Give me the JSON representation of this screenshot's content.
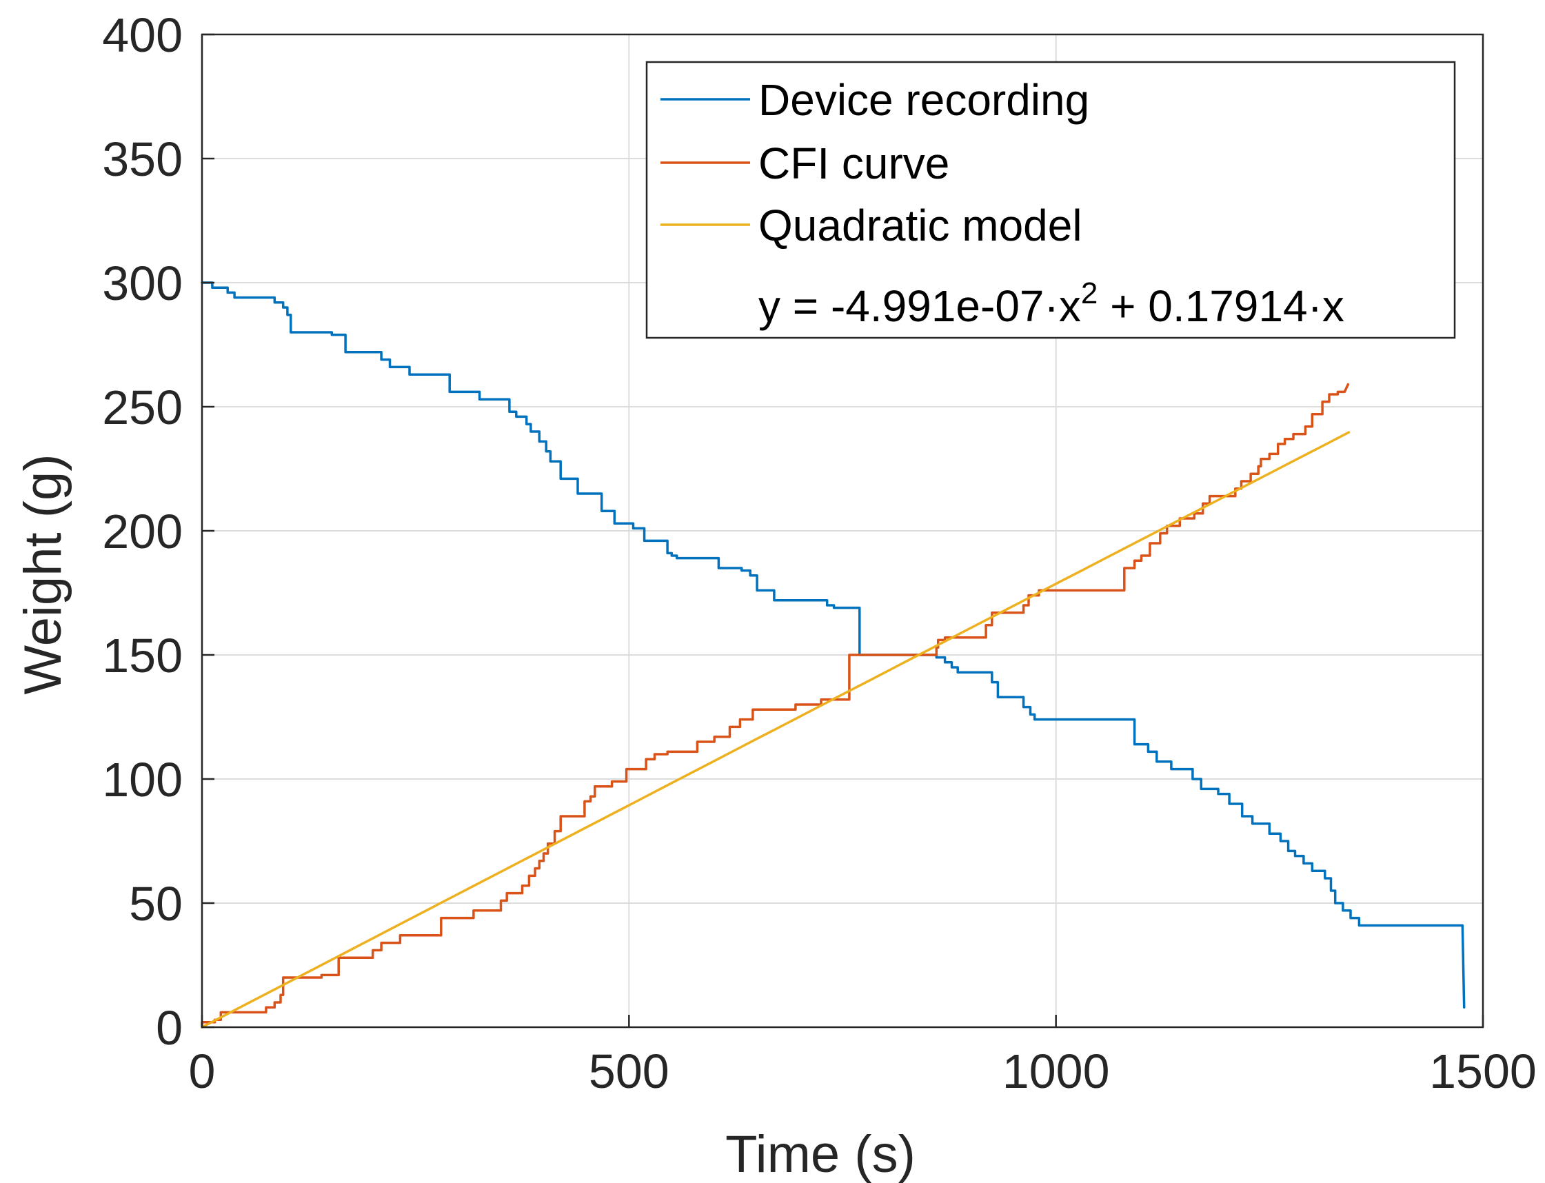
{
  "colors": {
    "device": "#0072BD",
    "cfi": "#D95319",
    "quadratic": "#EDB120",
    "axis": "#262626",
    "grid": "#dcdcdc"
  },
  "chart_data": {
    "type": "line",
    "title": "",
    "xlabel": "Time (s)",
    "ylabel": "Weight (g)",
    "xlim": [
      0,
      1500
    ],
    "ylim": [
      0,
      400
    ],
    "xticks": [
      0,
      500,
      1000,
      1500
    ],
    "yticks": [
      0,
      50,
      100,
      150,
      200,
      250,
      300,
      350,
      400
    ],
    "xtick_labels": [
      "0",
      "500",
      "1000",
      "1500"
    ],
    "ytick_labels": [
      "0",
      "50",
      "100",
      "150",
      "200",
      "250",
      "300",
      "350",
      "400"
    ],
    "grid": true,
    "legend_placement": "top-right",
    "equation": {
      "prefix": "y = -4.991e-07·x",
      "exponent": "2",
      "suffix": " + 0.17914·x"
    },
    "series": [
      {
        "name": "Device recording",
        "color": "#0072BD",
        "style": "step",
        "points": [
          [
            0,
            300
          ],
          [
            12,
            300
          ],
          [
            12,
            298
          ],
          [
            30,
            298
          ],
          [
            30,
            296
          ],
          [
            38,
            296
          ],
          [
            38,
            294
          ],
          [
            85,
            294
          ],
          [
            85,
            292
          ],
          [
            95,
            292
          ],
          [
            95,
            290
          ],
          [
            100,
            290
          ],
          [
            100,
            287
          ],
          [
            104,
            287
          ],
          [
            104,
            280
          ],
          [
            152,
            280
          ],
          [
            152,
            279
          ],
          [
            168,
            279
          ],
          [
            168,
            272
          ],
          [
            210,
            272
          ],
          [
            210,
            269
          ],
          [
            220,
            269
          ],
          [
            220,
            266
          ],
          [
            243,
            266
          ],
          [
            243,
            263
          ],
          [
            290,
            263
          ],
          [
            290,
            256
          ],
          [
            325,
            256
          ],
          [
            325,
            253
          ],
          [
            360,
            253
          ],
          [
            360,
            248
          ],
          [
            368,
            248
          ],
          [
            368,
            246
          ],
          [
            380,
            246
          ],
          [
            380,
            243
          ],
          [
            385,
            243
          ],
          [
            385,
            240
          ],
          [
            395,
            240
          ],
          [
            395,
            236
          ],
          [
            403,
            236
          ],
          [
            403,
            232
          ],
          [
            408,
            232
          ],
          [
            408,
            228
          ],
          [
            420,
            228
          ],
          [
            420,
            221
          ],
          [
            440,
            221
          ],
          [
            440,
            215
          ],
          [
            468,
            215
          ],
          [
            468,
            208
          ],
          [
            483,
            208
          ],
          [
            483,
            203
          ],
          [
            505,
            203
          ],
          [
            505,
            201
          ],
          [
            518,
            201
          ],
          [
            518,
            196
          ],
          [
            545,
            196
          ],
          [
            545,
            191
          ],
          [
            550,
            191
          ],
          [
            550,
            190
          ],
          [
            556,
            190
          ],
          [
            556,
            189
          ],
          [
            605,
            189
          ],
          [
            605,
            185
          ],
          [
            632,
            185
          ],
          [
            632,
            184
          ],
          [
            642,
            184
          ],
          [
            642,
            182
          ],
          [
            650,
            182
          ],
          [
            650,
            176
          ],
          [
            670,
            176
          ],
          [
            670,
            172
          ],
          [
            732,
            172
          ],
          [
            732,
            170
          ],
          [
            740,
            170
          ],
          [
            740,
            169
          ],
          [
            770,
            169
          ],
          [
            770,
            150
          ],
          [
            860,
            150
          ],
          [
            860,
            149
          ],
          [
            870,
            149
          ],
          [
            870,
            147
          ],
          [
            878,
            147
          ],
          [
            878,
            145
          ],
          [
            885,
            145
          ],
          [
            885,
            143
          ],
          [
            925,
            143
          ],
          [
            925,
            139
          ],
          [
            932,
            139
          ],
          [
            932,
            133
          ],
          [
            962,
            133
          ],
          [
            962,
            129
          ],
          [
            970,
            129
          ],
          [
            970,
            126
          ],
          [
            975,
            126
          ],
          [
            975,
            124
          ],
          [
            1092,
            124
          ],
          [
            1092,
            114
          ],
          [
            1108,
            114
          ],
          [
            1108,
            111
          ],
          [
            1118,
            111
          ],
          [
            1118,
            107
          ],
          [
            1135,
            107
          ],
          [
            1135,
            104
          ],
          [
            1160,
            104
          ],
          [
            1160,
            100
          ],
          [
            1170,
            100
          ],
          [
            1170,
            96
          ],
          [
            1190,
            96
          ],
          [
            1190,
            94
          ],
          [
            1203,
            94
          ],
          [
            1203,
            90
          ],
          [
            1218,
            90
          ],
          [
            1218,
            85
          ],
          [
            1230,
            85
          ],
          [
            1230,
            82
          ],
          [
            1250,
            82
          ],
          [
            1250,
            78
          ],
          [
            1263,
            78
          ],
          [
            1263,
            75
          ],
          [
            1272,
            75
          ],
          [
            1272,
            71
          ],
          [
            1280,
            71
          ],
          [
            1280,
            69
          ],
          [
            1290,
            69
          ],
          [
            1290,
            66
          ],
          [
            1300,
            66
          ],
          [
            1300,
            63
          ],
          [
            1315,
            63
          ],
          [
            1315,
            60
          ],
          [
            1322,
            60
          ],
          [
            1322,
            55
          ],
          [
            1327,
            55
          ],
          [
            1327,
            50
          ],
          [
            1336,
            50
          ],
          [
            1336,
            47
          ],
          [
            1345,
            47
          ],
          [
            1345,
            44
          ],
          [
            1355,
            44
          ],
          [
            1355,
            41
          ],
          [
            1476,
            41
          ],
          [
            1478,
            8
          ]
        ]
      },
      {
        "name": "CFI curve",
        "color": "#D95319",
        "style": "step",
        "points": [
          [
            0,
            0
          ],
          [
            0,
            2
          ],
          [
            15,
            2
          ],
          [
            15,
            3
          ],
          [
            22,
            3
          ],
          [
            22,
            6
          ],
          [
            75,
            6
          ],
          [
            75,
            8
          ],
          [
            85,
            8
          ],
          [
            85,
            10
          ],
          [
            92,
            10
          ],
          [
            92,
            13
          ],
          [
            95,
            13
          ],
          [
            95,
            20
          ],
          [
            140,
            20
          ],
          [
            140,
            21
          ],
          [
            160,
            21
          ],
          [
            160,
            28
          ],
          [
            200,
            28
          ],
          [
            200,
            31
          ],
          [
            210,
            31
          ],
          [
            210,
            34
          ],
          [
            232,
            34
          ],
          [
            232,
            37
          ],
          [
            280,
            37
          ],
          [
            280,
            44
          ],
          [
            318,
            44
          ],
          [
            318,
            47
          ],
          [
            350,
            47
          ],
          [
            350,
            51
          ],
          [
            357,
            51
          ],
          [
            357,
            54
          ],
          [
            375,
            54
          ],
          [
            375,
            57
          ],
          [
            383,
            57
          ],
          [
            383,
            61
          ],
          [
            390,
            61
          ],
          [
            390,
            64
          ],
          [
            395,
            64
          ],
          [
            395,
            67
          ],
          [
            400,
            67
          ],
          [
            400,
            70
          ],
          [
            405,
            70
          ],
          [
            405,
            74
          ],
          [
            413,
            74
          ],
          [
            413,
            79
          ],
          [
            420,
            79
          ],
          [
            420,
            85
          ],
          [
            448,
            85
          ],
          [
            448,
            91
          ],
          [
            455,
            91
          ],
          [
            455,
            93
          ],
          [
            460,
            93
          ],
          [
            460,
            97
          ],
          [
            480,
            97
          ],
          [
            480,
            99
          ],
          [
            497,
            99
          ],
          [
            497,
            104
          ],
          [
            520,
            104
          ],
          [
            520,
            108
          ],
          [
            530,
            108
          ],
          [
            530,
            110
          ],
          [
            545,
            110
          ],
          [
            545,
            111
          ],
          [
            580,
            111
          ],
          [
            580,
            115
          ],
          [
            600,
            115
          ],
          [
            600,
            117
          ],
          [
            618,
            117
          ],
          [
            618,
            121
          ],
          [
            630,
            121
          ],
          [
            630,
            124
          ],
          [
            645,
            124
          ],
          [
            645,
            128
          ],
          [
            695,
            128
          ],
          [
            695,
            130
          ],
          [
            725,
            130
          ],
          [
            725,
            132
          ],
          [
            758,
            132
          ],
          [
            758,
            150
          ],
          [
            860,
            150
          ],
          [
            860,
            153
          ],
          [
            862,
            153
          ],
          [
            862,
            156
          ],
          [
            870,
            156
          ],
          [
            870,
            157
          ],
          [
            918,
            157
          ],
          [
            918,
            162
          ],
          [
            925,
            162
          ],
          [
            925,
            167
          ],
          [
            962,
            167
          ],
          [
            962,
            170
          ],
          [
            968,
            170
          ],
          [
            968,
            174
          ],
          [
            980,
            174
          ],
          [
            980,
            176
          ],
          [
            1080,
            176
          ],
          [
            1080,
            185
          ],
          [
            1092,
            185
          ],
          [
            1092,
            188
          ],
          [
            1100,
            188
          ],
          [
            1100,
            190
          ],
          [
            1110,
            190
          ],
          [
            1110,
            195
          ],
          [
            1122,
            195
          ],
          [
            1122,
            199
          ],
          [
            1130,
            199
          ],
          [
            1130,
            202
          ],
          [
            1145,
            202
          ],
          [
            1145,
            205
          ],
          [
            1162,
            205
          ],
          [
            1162,
            207
          ],
          [
            1172,
            207
          ],
          [
            1172,
            211
          ],
          [
            1180,
            211
          ],
          [
            1180,
            214
          ],
          [
            1210,
            214
          ],
          [
            1210,
            217
          ],
          [
            1217,
            217
          ],
          [
            1217,
            220
          ],
          [
            1228,
            220
          ],
          [
            1228,
            223
          ],
          [
            1237,
            223
          ],
          [
            1237,
            226
          ],
          [
            1240,
            226
          ],
          [
            1240,
            229
          ],
          [
            1250,
            229
          ],
          [
            1250,
            231
          ],
          [
            1260,
            231
          ],
          [
            1260,
            235
          ],
          [
            1268,
            235
          ],
          [
            1268,
            237
          ],
          [
            1278,
            237
          ],
          [
            1278,
            239
          ],
          [
            1292,
            239
          ],
          [
            1292,
            242
          ],
          [
            1300,
            242
          ],
          [
            1300,
            247
          ],
          [
            1312,
            247
          ],
          [
            1312,
            252
          ],
          [
            1320,
            252
          ],
          [
            1320,
            255
          ],
          [
            1330,
            255
          ],
          [
            1330,
            256
          ],
          [
            1338,
            256
          ],
          [
            1342,
            259
          ]
        ]
      },
      {
        "name": "Quadratic model",
        "color": "#EDB120",
        "style": "curve",
        "function": {
          "a": -4.991e-07,
          "b": 0.17914,
          "c": 0,
          "x_start": 0,
          "x_end": 1343
        }
      }
    ]
  }
}
